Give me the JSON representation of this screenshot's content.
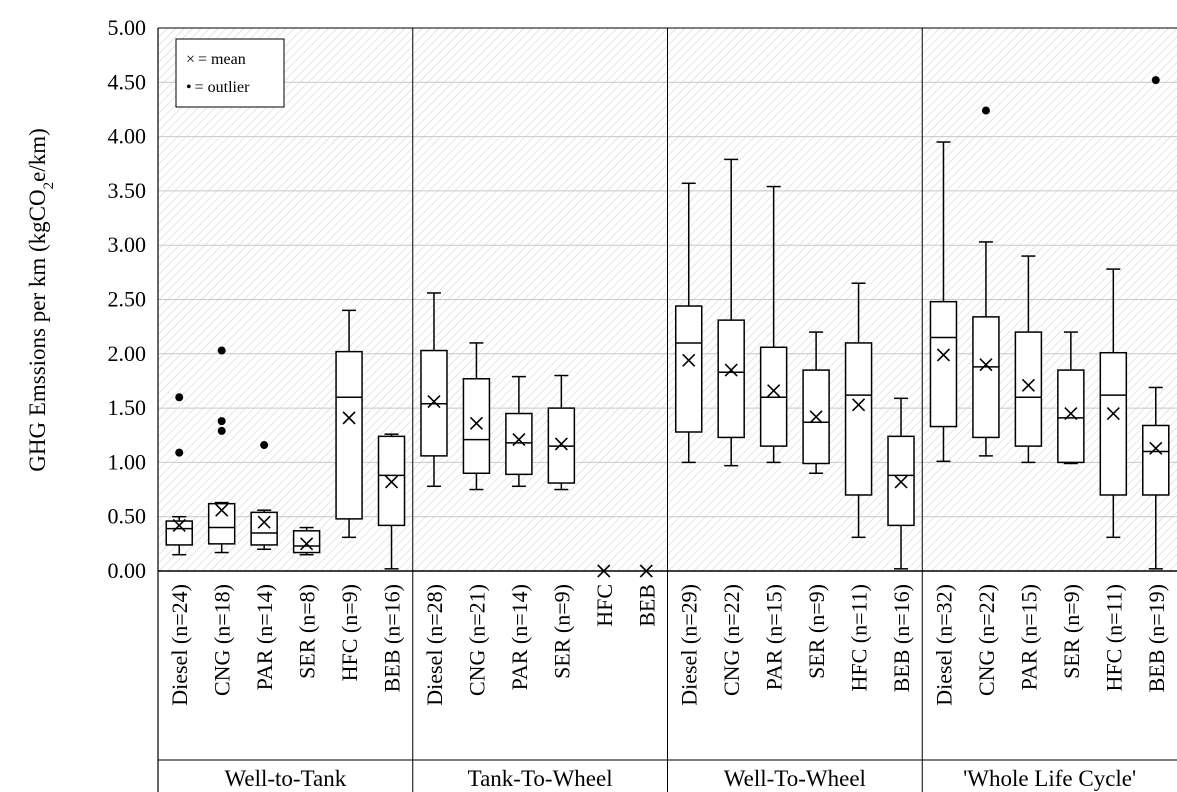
{
  "chart_data": {
    "type": "box",
    "ylabel_main": "GHG Emssions per km  (kgCO",
    "ylabel_sub": "2",
    "ylabel_tail": "e/km)",
    "ylim": [
      0,
      5
    ],
    "yticks": [
      "0.00",
      "0.50",
      "1.00",
      "1.50",
      "2.00",
      "2.50",
      "3.00",
      "3.50",
      "4.00",
      "4.50",
      "5.00"
    ],
    "grid": true,
    "legend": {
      "placement": "top-left",
      "mean_symbol": "×",
      "mean_label": "= mean",
      "outlier_symbol": "•",
      "outlier_label": "= outlier"
    },
    "groups": [
      {
        "name": "Well-to-Tank",
        "boxes": [
          {
            "label": "Diesel (n=24)",
            "whisker_low": 0.15,
            "q1": 0.24,
            "median": 0.39,
            "q3": 0.46,
            "whisker_high": 0.5,
            "mean": 0.42,
            "outliers": [
              1.09,
              1.6
            ]
          },
          {
            "label": "CNG (n=18)",
            "whisker_low": 0.17,
            "q1": 0.25,
            "median": 0.4,
            "q3": 0.62,
            "whisker_high": 0.63,
            "mean": 0.56,
            "outliers": [
              1.29,
              1.38,
              2.03
            ]
          },
          {
            "label": "PAR (n=14)",
            "whisker_low": 0.2,
            "q1": 0.24,
            "median": 0.35,
            "q3": 0.54,
            "whisker_high": 0.56,
            "mean": 0.45,
            "outliers": [
              1.16
            ]
          },
          {
            "label": "SER (n=8)",
            "whisker_low": 0.15,
            "q1": 0.17,
            "median": 0.23,
            "q3": 0.37,
            "whisker_high": 0.4,
            "mean": 0.25,
            "outliers": []
          },
          {
            "label": "HFC (n=9)",
            "whisker_low": 0.31,
            "q1": 0.48,
            "median": 1.6,
            "q3": 2.02,
            "whisker_high": 2.4,
            "mean": 1.41,
            "outliers": []
          },
          {
            "label": "BEB (n=16)",
            "whisker_low": 0.02,
            "q1": 0.42,
            "median": 0.88,
            "q3": 1.24,
            "whisker_high": 1.26,
            "mean": 0.82,
            "outliers": []
          }
        ]
      },
      {
        "name": "Tank-To-Wheel",
        "boxes": [
          {
            "label": "Diesel (n=28)",
            "whisker_low": 0.78,
            "q1": 1.06,
            "median": 1.54,
            "q3": 2.03,
            "whisker_high": 2.56,
            "mean": 1.56,
            "outliers": []
          },
          {
            "label": "CNG (n=21)",
            "whisker_low": 0.75,
            "q1": 0.9,
            "median": 1.21,
            "q3": 1.77,
            "whisker_high": 2.1,
            "mean": 1.36,
            "outliers": []
          },
          {
            "label": "PAR (n=14)",
            "whisker_low": 0.78,
            "q1": 0.89,
            "median": 1.18,
            "q3": 1.45,
            "whisker_high": 1.79,
            "mean": 1.21,
            "outliers": []
          },
          {
            "label": "SER (n=9)",
            "whisker_low": 0.75,
            "q1": 0.81,
            "median": 1.15,
            "q3": 1.5,
            "whisker_high": 1.8,
            "mean": 1.17,
            "outliers": []
          },
          {
            "label": "HFC",
            "mean": 0.0,
            "outliers": []
          },
          {
            "label": "BEB",
            "mean": 0.0,
            "outliers": []
          }
        ]
      },
      {
        "name": "Well-To-Wheel",
        "boxes": [
          {
            "label": "Diesel (n=29)",
            "whisker_low": 1.0,
            "q1": 1.28,
            "median": 2.1,
            "q3": 2.44,
            "whisker_high": 3.57,
            "mean": 1.94,
            "outliers": []
          },
          {
            "label": "CNG (n=22)",
            "whisker_low": 0.97,
            "q1": 1.23,
            "median": 1.83,
            "q3": 2.31,
            "whisker_high": 3.79,
            "mean": 1.85,
            "outliers": []
          },
          {
            "label": "PAR (n=15)",
            "whisker_low": 1.0,
            "q1": 1.15,
            "median": 1.6,
            "q3": 2.06,
            "whisker_high": 3.54,
            "mean": 1.66,
            "outliers": []
          },
          {
            "label": "SER (n=9)",
            "whisker_low": 0.9,
            "q1": 0.99,
            "median": 1.37,
            "q3": 1.85,
            "whisker_high": 2.2,
            "mean": 1.42,
            "outliers": []
          },
          {
            "label": "HFC (n=11)",
            "whisker_low": 0.31,
            "q1": 0.7,
            "median": 1.62,
            "q3": 2.1,
            "whisker_high": 2.65,
            "mean": 1.53,
            "outliers": []
          },
          {
            "label": "BEB (n=16)",
            "whisker_low": 0.02,
            "q1": 0.42,
            "median": 0.88,
            "q3": 1.24,
            "whisker_high": 1.59,
            "mean": 0.82,
            "outliers": []
          }
        ]
      },
      {
        "name": "'Whole Life Cycle'",
        "boxes": [
          {
            "label": "Diesel (n=32)",
            "whisker_low": 1.01,
            "q1": 1.33,
            "median": 2.15,
            "q3": 2.48,
            "whisker_high": 3.95,
            "mean": 1.99,
            "outliers": []
          },
          {
            "label": "CNG (n=22)",
            "whisker_low": 1.06,
            "q1": 1.23,
            "median": 1.88,
            "q3": 2.34,
            "whisker_high": 3.03,
            "mean": 1.9,
            "outliers": [
              4.24
            ]
          },
          {
            "label": "PAR (n=15)",
            "whisker_low": 1.0,
            "q1": 1.15,
            "median": 1.6,
            "q3": 2.2,
            "whisker_high": 2.9,
            "mean": 1.71,
            "outliers": []
          },
          {
            "label": "SER (n=9)",
            "whisker_low": 0.99,
            "q1": 1.0,
            "median": 1.41,
            "q3": 1.85,
            "whisker_high": 2.2,
            "mean": 1.45,
            "outliers": []
          },
          {
            "label": "HFC (n=11)",
            "whisker_low": 0.31,
            "q1": 0.7,
            "median": 1.62,
            "q3": 2.01,
            "whisker_high": 2.78,
            "mean": 1.45,
            "outliers": []
          },
          {
            "label": "BEB (n=19)",
            "whisker_low": 0.02,
            "q1": 0.7,
            "median": 1.1,
            "q3": 1.34,
            "whisker_high": 1.69,
            "mean": 1.13,
            "outliers": [
              4.52
            ]
          }
        ]
      }
    ]
  }
}
